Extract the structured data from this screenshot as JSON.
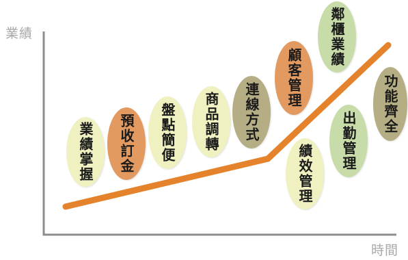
{
  "axes": {
    "y_label": "業績",
    "x_label": "時間"
  },
  "colors": {
    "axis": "#8c8c8c",
    "trend_line": "#e4832c",
    "pale_yellow": "#eff1c0",
    "orange": "#e29a60",
    "olive": "#b5ae84",
    "light_green": "#c8dcaa"
  },
  "features": [
    {
      "id": "performance-control",
      "label": "業績掌握",
      "color": "pale_yellow"
    },
    {
      "id": "prepaid-deposit",
      "label": "預收訂金",
      "color": "orange"
    },
    {
      "id": "simple-inventory",
      "label": "盤點簡便",
      "color": "pale_yellow"
    },
    {
      "id": "product-transfer",
      "label": "商品調轉",
      "color": "pale_yellow"
    },
    {
      "id": "chain-mode",
      "label": "連線方式",
      "color": "olive"
    },
    {
      "id": "customer-management",
      "label": "顧客管理",
      "color": "orange"
    },
    {
      "id": "cabinet-performance",
      "label": "鄰櫃業績",
      "color": "light_green"
    },
    {
      "id": "performance-management",
      "label": "績效管理",
      "color": "pale_yellow"
    },
    {
      "id": "attendance-management",
      "label": "出勤管理",
      "color": "light_green"
    },
    {
      "id": "complete-functions",
      "label": "功能齊全",
      "color": "olive"
    }
  ]
}
